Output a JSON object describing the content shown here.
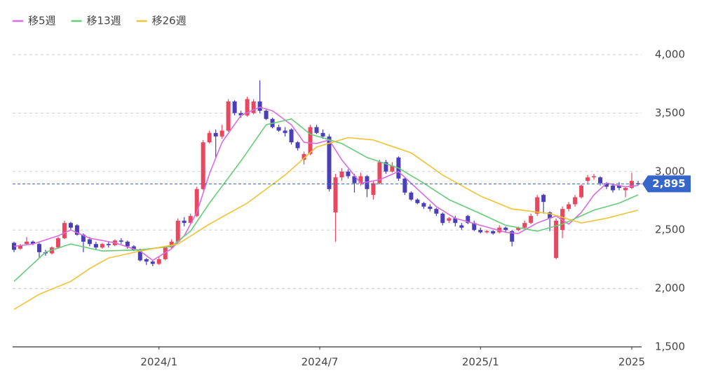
{
  "chart_data": {
    "type": "candlestick",
    "legend": "top-left",
    "grid": true,
    "ylim": [
      1500,
      4000
    ],
    "yticks": [
      {
        "value": 1500,
        "label": "1,500"
      },
      {
        "value": 2000,
        "label": "2,000"
      },
      {
        "value": 2500,
        "label": "2,500"
      },
      {
        "value": 3000,
        "label": "3,000"
      },
      {
        "value": 3500,
        "label": "3,500"
      },
      {
        "value": 4000,
        "label": "4,000"
      }
    ],
    "xticks": [
      {
        "value": 23,
        "label": "2024/1"
      },
      {
        "value": 48.5,
        "label": "2024/7"
      },
      {
        "value": 74,
        "label": "2025/1"
      },
      {
        "value": 98,
        "label": "2025"
      }
    ],
    "candles": {
      "up_color": "#e8475f",
      "down_color": "#4a3fb8",
      "open": [
        2390,
        2340,
        2380,
        2400,
        2380,
        2310,
        2300,
        2350,
        2430,
        2560,
        2540,
        2460,
        2420,
        2380,
        2350,
        2380,
        2370,
        2410,
        2400,
        2360,
        2330,
        2250,
        2230,
        2210,
        2250,
        2350,
        2400,
        2580,
        2560,
        2620,
        2850,
        3250,
        3330,
        3300,
        3350,
        3600,
        3500,
        3480,
        3500,
        3600,
        3520,
        3450,
        3380,
        3350,
        3360,
        3250,
        3100,
        3150,
        3380,
        3330,
        3300,
        2650,
        2950,
        3000,
        2960,
        2900,
        2960,
        2800,
        2900,
        3080,
        3000,
        3120,
        2940,
        2820,
        2760,
        2730,
        2700,
        2680,
        2640,
        2580,
        2600,
        2540,
        2620,
        2560,
        2500,
        2480,
        2490,
        2480,
        2520,
        2490,
        2500,
        2520,
        2560,
        2640,
        2800,
        2650,
        2260,
        2500,
        2680,
        2720,
        2780,
        2920,
        2950,
        2950,
        2900,
        2880,
        2880,
        2840,
        2860,
        2900
      ],
      "high": [
        2400,
        2380,
        2440,
        2410,
        2390,
        2330,
        2360,
        2440,
        2580,
        2570,
        2550,
        2470,
        2440,
        2400,
        2390,
        2400,
        2420,
        2430,
        2410,
        2370,
        2340,
        2260,
        2240,
        2270,
        2360,
        2420,
        2600,
        2610,
        2640,
        2870,
        3270,
        3350,
        3360,
        3400,
        3620,
        3610,
        3520,
        3640,
        3620,
        3780,
        3530,
        3460,
        3400,
        3380,
        3370,
        3260,
        3170,
        3400,
        3400,
        3360,
        3320,
        2980,
        3030,
        3020,
        2980,
        2990,
        2970,
        2920,
        3100,
        3100,
        3080,
        3130,
        2950,
        2830,
        2770,
        2740,
        2720,
        2690,
        2650,
        2610,
        2620,
        2560,
        2630,
        2580,
        2520,
        2500,
        2500,
        2540,
        2530,
        2500,
        2530,
        2580,
        2640,
        2800,
        2810,
        2660,
        2600,
        2700,
        2740,
        2800,
        2890,
        2970,
        2980,
        2960,
        2910,
        2890,
        2910,
        2870,
        2990,
        2920
      ],
      "low": [
        2310,
        2330,
        2370,
        2370,
        2260,
        2280,
        2290,
        2340,
        2420,
        2500,
        2450,
        2310,
        2360,
        2330,
        2340,
        2350,
        2360,
        2380,
        2340,
        2320,
        2230,
        2200,
        2190,
        2200,
        2240,
        2340,
        2390,
        2530,
        2550,
        2610,
        2840,
        3240,
        3120,
        3280,
        3340,
        3480,
        3460,
        3470,
        3490,
        3500,
        3440,
        3370,
        3340,
        3300,
        3230,
        3180,
        3060,
        3140,
        3320,
        3280,
        2830,
        2400,
        2920,
        2940,
        2820,
        2880,
        2780,
        2760,
        2890,
        2980,
        2990,
        2920,
        2800,
        2750,
        2720,
        2680,
        2660,
        2620,
        2540,
        2560,
        2530,
        2500,
        2550,
        2490,
        2470,
        2470,
        2460,
        2470,
        2480,
        2360,
        2490,
        2510,
        2550,
        2620,
        2640,
        2490,
        2250,
        2430,
        2660,
        2700,
        2770,
        2900,
        2930,
        2880,
        2850,
        2820,
        2840,
        2780,
        2850,
        2880
      ],
      "close": [
        2330,
        2370,
        2400,
        2380,
        2310,
        2300,
        2350,
        2430,
        2560,
        2520,
        2460,
        2400,
        2380,
        2350,
        2380,
        2370,
        2410,
        2400,
        2360,
        2330,
        2240,
        2230,
        2210,
        2250,
        2350,
        2400,
        2580,
        2560,
        2620,
        2850,
        3250,
        3330,
        3300,
        3350,
        3600,
        3500,
        3480,
        3620,
        3600,
        3520,
        3450,
        3380,
        3350,
        3330,
        3250,
        3200,
        3150,
        3380,
        3330,
        3300,
        2850,
        2950,
        3000,
        2960,
        2900,
        2960,
        2850,
        2900,
        3080,
        3000,
        3050,
        2940,
        2820,
        2760,
        2730,
        2700,
        2680,
        2640,
        2560,
        2600,
        2560,
        2520,
        2560,
        2500,
        2480,
        2490,
        2470,
        2520,
        2500,
        2400,
        2520,
        2560,
        2620,
        2780,
        2740,
        2600,
        2580,
        2680,
        2720,
        2780,
        2880,
        2950,
        2960,
        2900,
        2870,
        2840,
        2860,
        2860,
        2920,
        2895
      ]
    },
    "series": [
      {
        "name": "移5週",
        "color": "#d86be0",
        "values": [
          2360,
          2367,
          2373,
          2380,
          2398,
          2415,
          2433,
          2450,
          2475,
          2500,
          2477,
          2453,
          2430,
          2420,
          2410,
          2400,
          2390,
          2373,
          2355,
          2338,
          2320,
          2280,
          2240,
          2273,
          2307,
          2340,
          2395,
          2450,
          2550,
          2650,
          2815,
          2980,
          3115,
          3250,
          3327,
          3403,
          3480,
          3503,
          3527,
          3550,
          3535,
          3520,
          3480,
          3440,
          3400,
          3325,
          3250,
          3245,
          3240,
          3255,
          3270,
          3185,
          3100,
          3033,
          2967,
          2900,
          2910,
          2920,
          2930,
          2953,
          2977,
          3000,
          2950,
          2900,
          2850,
          2800,
          2750,
          2700,
          2667,
          2633,
          2600,
          2585,
          2570,
          2555,
          2540,
          2525,
          2510,
          2495,
          2480,
          2475,
          2470,
          2500,
          2530,
          2560,
          2580,
          2600,
          2620,
          2585,
          2550,
          2600,
          2650,
          2725,
          2800,
          2850,
          2900,
          2890,
          2880,
          2870,
          2875,
          2880
        ]
      },
      {
        "name": "移13週",
        "color": "#66cc77",
        "values": [
          2060,
          2110,
          2160,
          2210,
          2260,
          2310,
          2328,
          2345,
          2363,
          2380,
          2368,
          2356,
          2344,
          2332,
          2320,
          2322,
          2323,
          2325,
          2327,
          2328,
          2330,
          2336,
          2342,
          2348,
          2354,
          2360,
          2403,
          2447,
          2490,
          2570,
          2650,
          2730,
          2802,
          2874,
          2946,
          3018,
          3090,
          3168,
          3245,
          3323,
          3400,
          3413,
          3425,
          3438,
          3450,
          3407,
          3363,
          3320,
          3304,
          3288,
          3272,
          3256,
          3240,
          3210,
          3180,
          3150,
          3120,
          3102,
          3084,
          3066,
          3048,
          3030,
          2998,
          2965,
          2933,
          2900,
          2865,
          2830,
          2795,
          2760,
          2736,
          2712,
          2688,
          2664,
          2640,
          2615,
          2590,
          2565,
          2540,
          2530,
          2520,
          2510,
          2500,
          2490,
          2505,
          2520,
          2535,
          2550,
          2574,
          2598,
          2622,
          2646,
          2670,
          2685,
          2700,
          2715,
          2730,
          2753,
          2777,
          2800
        ]
      },
      {
        "name": "移26週",
        "color": "#f2c234",
        "values": [
          1820,
          1853,
          1885,
          1918,
          1950,
          1972,
          1994,
          2016,
          2038,
          2060,
          2097,
          2133,
          2170,
          2200,
          2230,
          2260,
          2272,
          2284,
          2296,
          2308,
          2320,
          2330,
          2340,
          2350,
          2360,
          2370,
          2380,
          2414,
          2448,
          2482,
          2516,
          2550,
          2580,
          2610,
          2640,
          2670,
          2700,
          2730,
          2770,
          2810,
          2850,
          2890,
          2930,
          2970,
          3018,
          3066,
          3114,
          3162,
          3210,
          3226,
          3242,
          3258,
          3274,
          3290,
          3285,
          3280,
          3275,
          3270,
          3252,
          3233,
          3215,
          3197,
          3178,
          3160,
          3122,
          3084,
          3046,
          3008,
          2970,
          2940,
          2910,
          2880,
          2850,
          2820,
          2790,
          2768,
          2746,
          2724,
          2702,
          2680,
          2673,
          2667,
          2660,
          2653,
          2647,
          2640,
          2624,
          2608,
          2592,
          2576,
          2560,
          2570,
          2580,
          2590,
          2600,
          2614,
          2628,
          2642,
          2656,
          2670
        ]
      }
    ],
    "last_price": {
      "value": 2895,
      "label": "2,895",
      "color": "#3566c9"
    }
  }
}
